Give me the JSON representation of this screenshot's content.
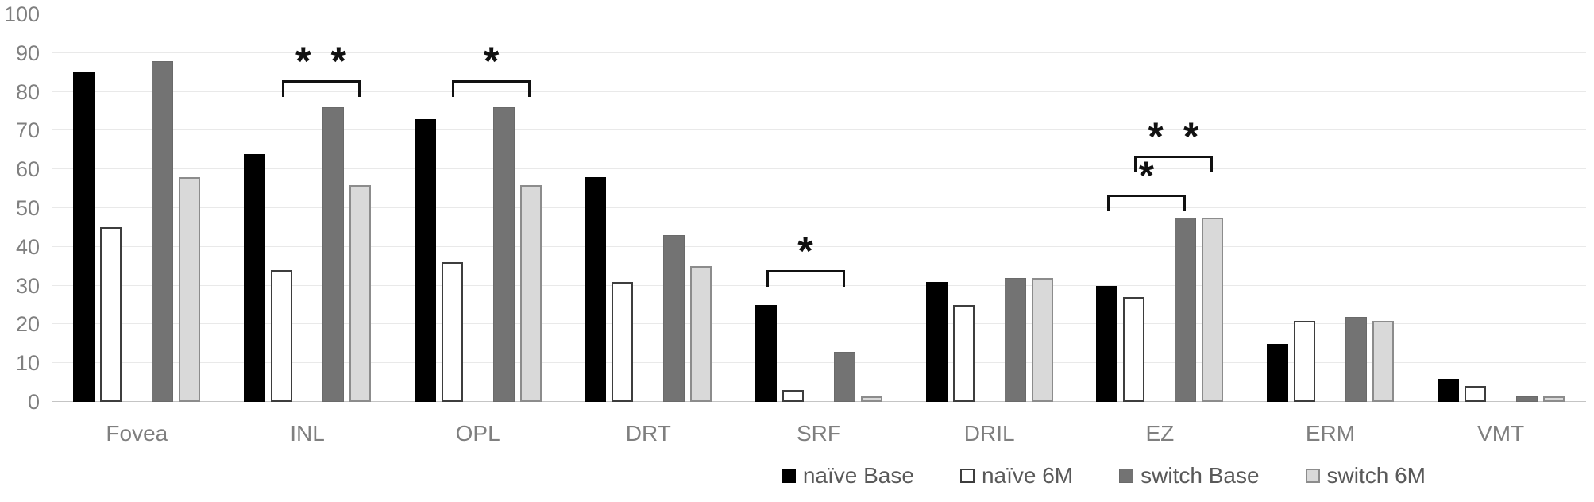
{
  "chart_data": {
    "type": "bar",
    "title": "",
    "xlabel": "",
    "ylabel": "",
    "ylim": [
      0,
      100
    ],
    "yticks": [
      0,
      10,
      20,
      30,
      40,
      50,
      60,
      70,
      80,
      90,
      100
    ],
    "grid": true,
    "legend_position": "bottom-right",
    "categories": [
      "Fovea",
      "INL",
      "OPL",
      "DRT",
      "SRF",
      "DRIL",
      "EZ",
      "ERM",
      "VMT"
    ],
    "series": [
      {
        "name": "naïve Base",
        "color": "#000000",
        "border": "none",
        "values": [
          85,
          64,
          73,
          58,
          25,
          31,
          30,
          15,
          6
        ]
      },
      {
        "name": "naïve 6M",
        "color": "#ffffff",
        "border": "2px solid #3d3d3d",
        "values": [
          45,
          34,
          36,
          31,
          3,
          25,
          27,
          21,
          4
        ]
      },
      {
        "name": "switch Base",
        "color": "#737373",
        "border": "1px solid #6a6a6a",
        "values": [
          88,
          76,
          76,
          43,
          13,
          32,
          47.5,
          22,
          1.5
        ]
      },
      {
        "name": "switch 6M",
        "color": "#d9d9d9",
        "border": "2px solid #8c8c8c",
        "values": [
          58,
          56,
          56,
          35,
          1.5,
          32,
          47.5,
          21,
          1.5
        ]
      }
    ],
    "significance_annotations": [
      {
        "category": "INL",
        "from_series": 1,
        "to_series": 3,
        "label": "**",
        "bracket_y": 83
      },
      {
        "category": "OPL",
        "from_series": 1,
        "to_series": 3,
        "label": "*",
        "bracket_y": 83
      },
      {
        "category": "SRF",
        "from_series": 0,
        "to_series": 2,
        "label": "*",
        "bracket_y": 34
      },
      {
        "category": "EZ",
        "from_series": 0,
        "to_series": 2,
        "label": "*",
        "bracket_y": 53.5
      },
      {
        "category": "EZ",
        "from_series": 1,
        "to_series": 3,
        "label": "**",
        "bracket_y": 63.5
      }
    ],
    "colors": {
      "axis_text": "#7f7f7f",
      "gridline": "#e9e9e9",
      "axis_line": "#c4c4c4",
      "annotation": "#111111",
      "legend_text": "#595959"
    }
  }
}
